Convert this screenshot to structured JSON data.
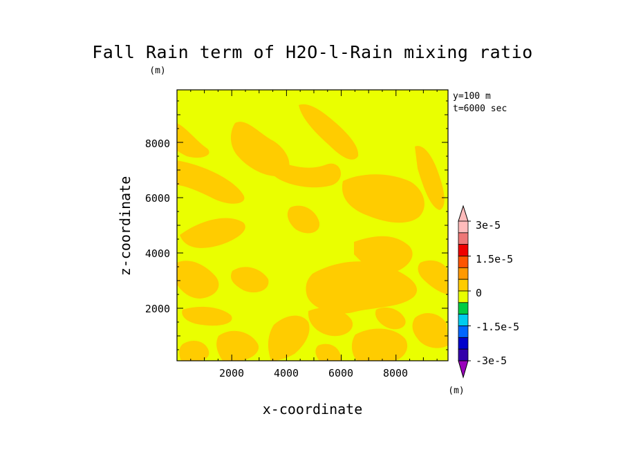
{
  "chart_data": {
    "type": "heatmap",
    "title": "Fall Rain term of H2O-l-Rain mixing ratio",
    "title_unit": "(m)",
    "xlabel": "x-coordinate",
    "ylabel": "z-coordinate",
    "xlim": [
      0,
      9900
    ],
    "ylim": [
      100,
      9900
    ],
    "xticks": [
      2000,
      4000,
      6000,
      8000
    ],
    "yticks": [
      2000,
      4000,
      6000,
      8000
    ],
    "xtick_labels": [
      "2000",
      "4000",
      "6000",
      "8000"
    ],
    "ytick_labels": [
      "2000",
      "4000",
      "6000",
      "8000"
    ],
    "annotations": [
      "y=100 m",
      "t=6000 sec"
    ],
    "colorbar": {
      "levels": [
        -3e-05,
        -2.5e-05,
        -2e-05,
        -1.5e-05,
        -1e-05,
        -5e-06,
        0,
        5e-06,
        1e-05,
        1.5e-05,
        2e-05,
        2.5e-05,
        3e-05
      ],
      "colors": [
        "#9900bb",
        "#3300aa",
        "#0000cc",
        "#0066ff",
        "#00ccee",
        "#00cc44",
        "#e8ff00",
        "#ffcc00",
        "#ff9900",
        "#ff5500",
        "#ee0000",
        "#ee7777",
        "#ffbbbb"
      ],
      "labels": [
        "3e-5",
        "1.5e-5",
        "0",
        "-1.5e-5",
        "-3e-5"
      ],
      "unit": "(m)"
    },
    "field_colors": {
      "background": "#eaff00",
      "positive": "#ffcc00"
    }
  }
}
